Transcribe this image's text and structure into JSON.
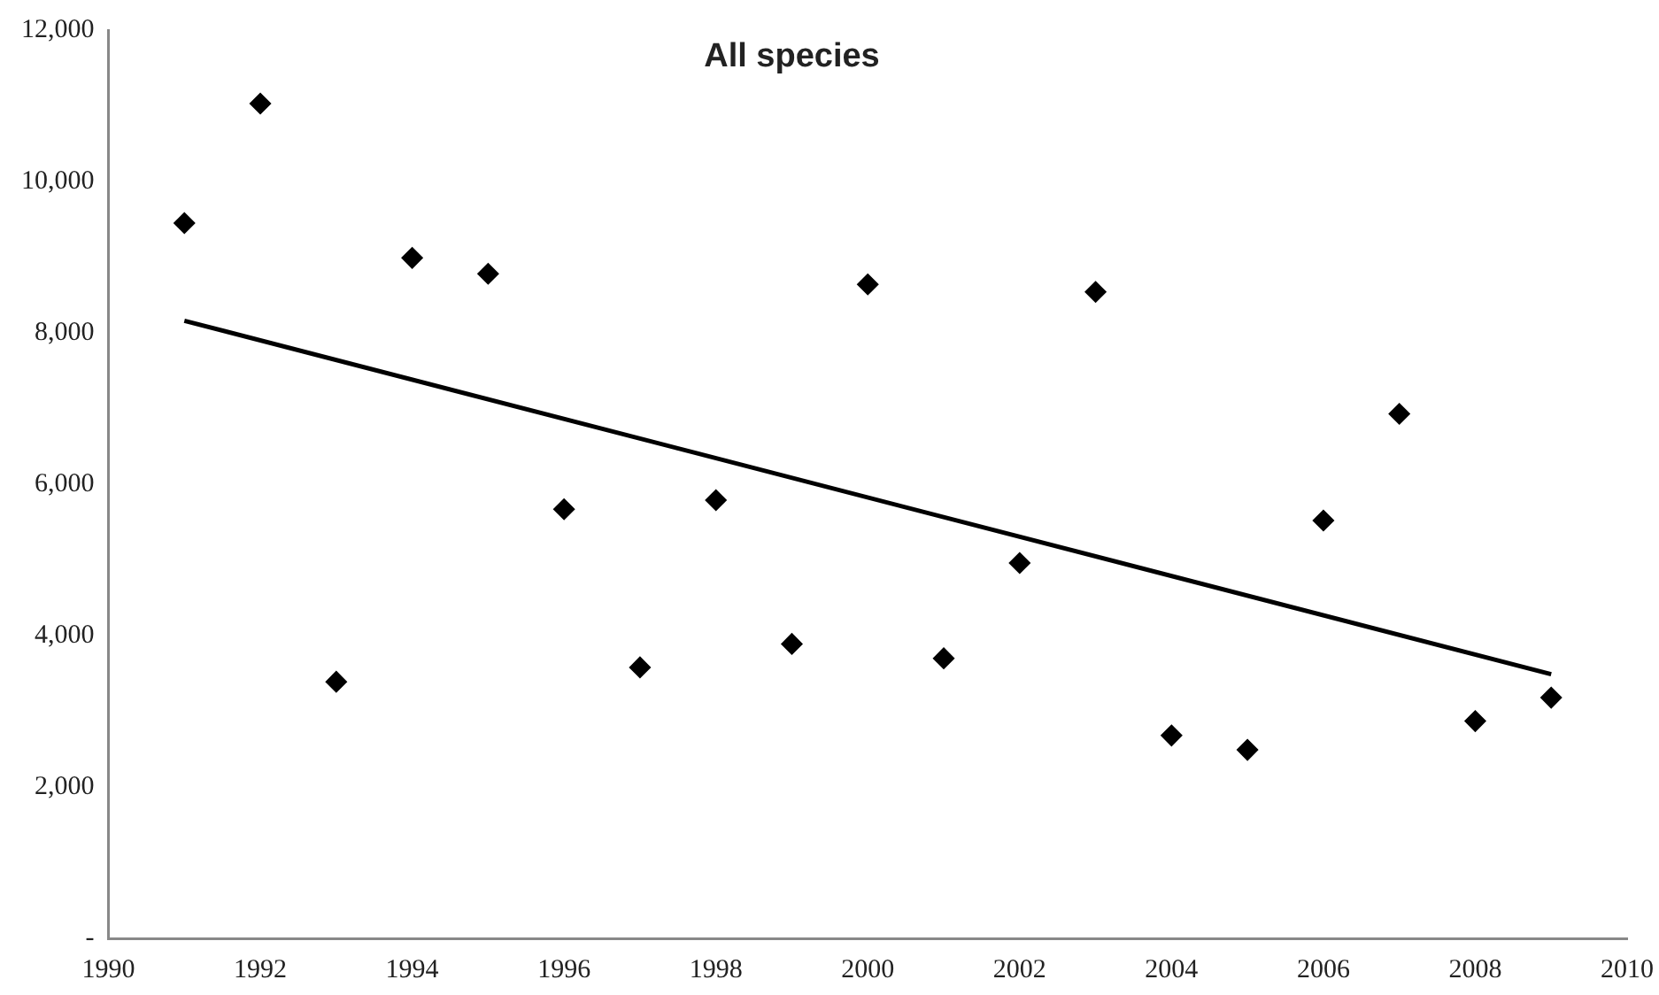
{
  "chart_data": {
    "type": "scatter",
    "title": "All species",
    "xlim": [
      1990,
      2010
    ],
    "xticks": [
      1990,
      1992,
      1994,
      1996,
      1998,
      2000,
      2002,
      2004,
      2006,
      2008,
      2010
    ],
    "ylim": [
      0,
      12000
    ],
    "yticks": [
      {
        "value": 0,
        "label": "-"
      },
      {
        "value": 2000,
        "label": "2,000"
      },
      {
        "value": 4000,
        "label": "4,000"
      },
      {
        "value": 6000,
        "label": "6,000"
      },
      {
        "value": 8000,
        "label": "8,000"
      },
      {
        "value": 10000,
        "label": "10,000"
      },
      {
        "value": 12000,
        "label": "12,000"
      }
    ],
    "grid": false,
    "legend": false,
    "marker": "diamond",
    "series": [
      {
        "type": "scatter",
        "color": "#000000",
        "x": [
          1991,
          1992,
          1993,
          1994,
          1995,
          1996,
          1997,
          1998,
          1999,
          2000,
          2001,
          2002,
          2003,
          2004,
          2005,
          2006,
          2007,
          2008,
          2009
        ],
        "values": [
          9450,
          11030,
          3390,
          8990,
          8780,
          5670,
          3580,
          5790,
          3890,
          8640,
          3700,
          4960,
          8540,
          2680,
          2490,
          5520,
          6930,
          2870,
          3180
        ]
      },
      {
        "type": "line",
        "color": "#000000",
        "x": [
          1991,
          2009
        ],
        "values": [
          8160,
          3490
        ],
        "marker": "none",
        "line_style": "solid"
      }
    ]
  }
}
